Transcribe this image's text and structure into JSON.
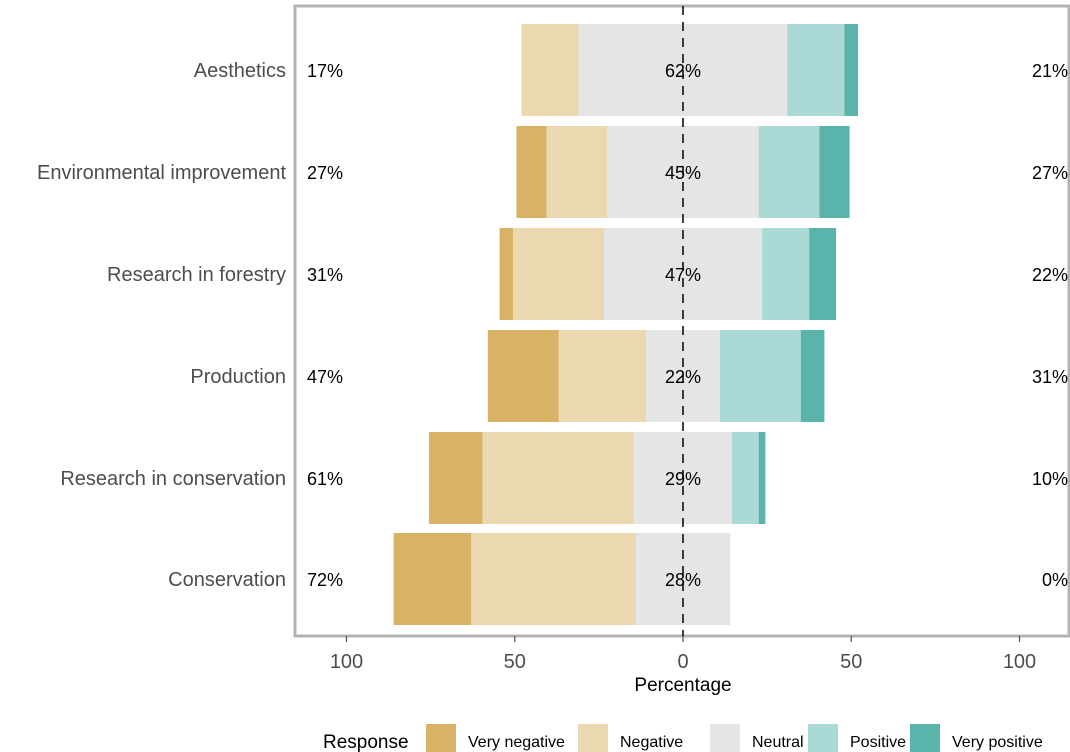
{
  "chart_data": {
    "type": "bar",
    "subtype": "diverging-stacked-likert",
    "xlabel": "Percentage",
    "ylabel": "",
    "x_ticks": [
      100,
      50,
      0,
      50,
      100
    ],
    "xlim": [
      -100,
      100
    ],
    "grid": false,
    "legend_position": "bottom",
    "legend_title": "Response",
    "categories": [
      "Aesthetics",
      "Environmental improvement",
      "Research in forestry",
      "Production",
      "Research in conservation",
      "Conservation"
    ],
    "series": [
      {
        "name": "Very negative",
        "color": "#D8B365",
        "values": [
          0,
          9,
          4,
          21,
          16,
          23
        ]
      },
      {
        "name": "Negative",
        "color": "#EAD9B0",
        "values": [
          17,
          18,
          27,
          26,
          45,
          49
        ]
      },
      {
        "name": "Neutral",
        "color": "#E5E5E5",
        "values": [
          62,
          45,
          47,
          22,
          29,
          28
        ]
      },
      {
        "name": "Positive",
        "color": "#ABD9D5",
        "values": [
          17,
          18,
          14,
          24,
          8,
          0
        ]
      },
      {
        "name": "Very positive",
        "color": "#5AB4AC",
        "values": [
          4,
          9,
          8,
          7,
          2,
          0
        ]
      }
    ],
    "labels_left": [
      "17%",
      "27%",
      "31%",
      "47%",
      "61%",
      "72%"
    ],
    "labels_center": [
      "62%",
      "45%",
      "47%",
      "22%",
      "29%",
      "28%"
    ],
    "labels_right": [
      "21%",
      "27%",
      "22%",
      "31%",
      "10%",
      "0%"
    ]
  }
}
